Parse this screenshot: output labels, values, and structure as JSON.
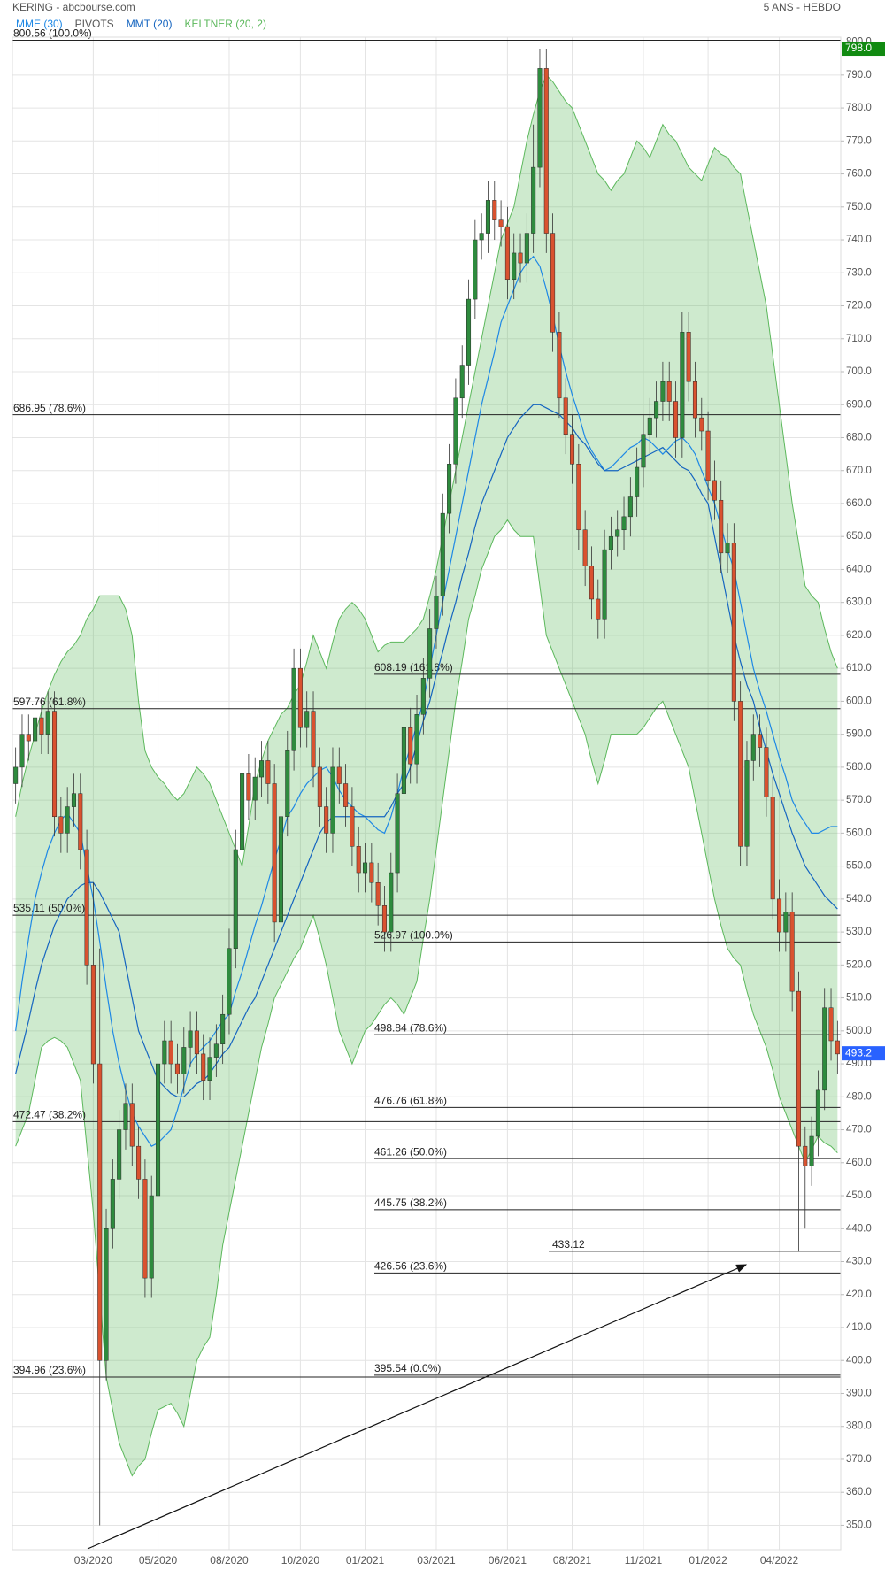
{
  "chart_data": {
    "type": "candlestick",
    "title": "KERING - abcbourse.com",
    "subtitle": "5 ANS - HEBDO",
    "categories": [
      null,
      null,
      null,
      null,
      null,
      null,
      null,
      null,
      null,
      null,
      null,
      null,
      "03/2020",
      null,
      null,
      null,
      null,
      null,
      null,
      null,
      null,
      null,
      "05/2020",
      null,
      null,
      null,
      null,
      null,
      null,
      null,
      null,
      null,
      null,
      "08/2020",
      null,
      null,
      null,
      null,
      null,
      null,
      null,
      null,
      null,
      null,
      "10/2020",
      null,
      null,
      null,
      null,
      null,
      null,
      null,
      null,
      null,
      "01/2021",
      null,
      null,
      null,
      null,
      null,
      null,
      null,
      null,
      null,
      null,
      "03/2021",
      null,
      null,
      null,
      null,
      null,
      null,
      null,
      null,
      null,
      null,
      "06/2021",
      null,
      null,
      null,
      null,
      null,
      null,
      null,
      null,
      null,
      "08/2021",
      null,
      null,
      null,
      null,
      null,
      null,
      null,
      null,
      null,
      null,
      "11/2021",
      null,
      null,
      null,
      null,
      null,
      null,
      null,
      null,
      null,
      "01/2022",
      null,
      null,
      null,
      null,
      null,
      null,
      null,
      null,
      null,
      null,
      "04/2022",
      null,
      null,
      null,
      null,
      null,
      null,
      null,
      null,
      null
    ],
    "open": [
      575,
      580,
      590,
      588,
      595,
      590,
      597,
      565,
      560,
      568,
      572,
      555,
      520,
      490,
      400,
      440,
      455,
      470,
      478,
      465,
      455,
      425,
      450,
      490,
      497,
      490,
      487,
      495,
      500,
      493,
      485,
      492,
      496,
      505,
      525,
      555,
      578,
      570,
      577,
      582,
      575,
      533,
      565,
      585,
      610,
      592,
      597,
      580,
      568,
      560,
      580,
      575,
      568,
      556,
      548,
      551,
      545,
      538,
      530,
      548,
      572,
      592,
      581,
      596,
      607,
      622,
      632,
      657,
      672,
      692,
      702,
      722,
      740,
      742,
      752,
      746,
      744,
      728,
      736,
      733,
      742,
      762,
      792,
      742,
      712,
      692,
      681,
      672,
      652,
      641,
      631,
      625,
      646,
      650,
      652,
      656,
      662,
      671,
      681,
      686,
      691,
      697,
      691,
      680,
      712,
      697,
      686,
      682,
      667,
      661,
      645,
      648,
      600,
      556,
      582,
      590,
      586,
      571,
      540,
      530,
      536,
      512,
      465,
      459,
      468,
      482,
      507,
      497
    ],
    "high": [
      586,
      596,
      596,
      601,
      601,
      603,
      603,
      571,
      574,
      578,
      578,
      561,
      545,
      525,
      446,
      461,
      476,
      484,
      484,
      471,
      461,
      456,
      496,
      503,
      503,
      496,
      501,
      506,
      506,
      499,
      498,
      502,
      511,
      531,
      561,
      584,
      584,
      583,
      588,
      588,
      581,
      571,
      591,
      616,
      616,
      603,
      603,
      586,
      574,
      586,
      586,
      581,
      574,
      562,
      557,
      557,
      551,
      544,
      554,
      578,
      598,
      598,
      602,
      613,
      628,
      638,
      663,
      678,
      698,
      708,
      728,
      746,
      748,
      758,
      758,
      752,
      750,
      742,
      742,
      748,
      775,
      798,
      798,
      748,
      718,
      698,
      687,
      678,
      658,
      647,
      637,
      652,
      656,
      658,
      662,
      668,
      677,
      687,
      692,
      697,
      703,
      703,
      697,
      718,
      718,
      703,
      692,
      688,
      673,
      667,
      654,
      654,
      606,
      588,
      596,
      596,
      592,
      577,
      546,
      542,
      542,
      518,
      471,
      474,
      488,
      513,
      513,
      503
    ],
    "low": [
      569,
      574,
      582,
      582,
      584,
      584,
      559,
      554,
      554,
      562,
      549,
      514,
      484,
      350,
      394,
      434,
      449,
      464,
      459,
      449,
      419,
      419,
      444,
      484,
      484,
      481,
      481,
      489,
      487,
      479,
      479,
      486,
      490,
      499,
      519,
      549,
      564,
      564,
      571,
      569,
      527,
      527,
      559,
      579,
      586,
      586,
      574,
      562,
      554,
      554,
      569,
      562,
      550,
      542,
      542,
      539,
      532,
      524,
      524,
      542,
      566,
      575,
      575,
      590,
      601,
      616,
      626,
      651,
      666,
      686,
      696,
      716,
      734,
      736,
      740,
      738,
      722,
      722,
      727,
      727,
      736,
      756,
      736,
      706,
      686,
      675,
      666,
      646,
      635,
      625,
      619,
      619,
      640,
      644,
      646,
      650,
      656,
      665,
      675,
      680,
      685,
      685,
      674,
      674,
      691,
      680,
      676,
      661,
      655,
      639,
      639,
      594,
      550,
      550,
      576,
      580,
      565,
      534,
      524,
      524,
      506,
      433,
      440,
      453,
      462,
      476,
      491,
      487
    ],
    "close": [
      580,
      590,
      588,
      595,
      590,
      597,
      565,
      560,
      568,
      572,
      555,
      520,
      490,
      400,
      440,
      455,
      470,
      478,
      465,
      455,
      425,
      450,
      490,
      497,
      490,
      487,
      495,
      500,
      493,
      485,
      492,
      496,
      505,
      525,
      555,
      578,
      570,
      577,
      582,
      575,
      533,
      565,
      585,
      610,
      592,
      597,
      580,
      568,
      560,
      580,
      575,
      568,
      556,
      548,
      551,
      545,
      538,
      530,
      548,
      572,
      592,
      581,
      596,
      607,
      622,
      632,
      657,
      672,
      692,
      702,
      722,
      740,
      742,
      752,
      746,
      744,
      728,
      736,
      733,
      742,
      762,
      792,
      742,
      712,
      692,
      681,
      672,
      652,
      641,
      631,
      625,
      646,
      650,
      652,
      656,
      662,
      671,
      681,
      686,
      691,
      697,
      691,
      680,
      712,
      697,
      686,
      682,
      667,
      661,
      645,
      648,
      600,
      556,
      582,
      590,
      586,
      571,
      540,
      530,
      536,
      512,
      465,
      459,
      468,
      482,
      507,
      497,
      493
    ],
    "up_color": "#2e8b3e",
    "down_color": "#d9522f",
    "band": {
      "name": "KELTNER (20, 2)",
      "color": "#5cb85c",
      "upper": [
        565,
        575,
        583,
        590,
        597,
        603,
        608,
        612,
        615,
        617,
        620,
        625,
        628,
        632,
        632,
        632,
        632,
        628,
        620,
        600,
        585,
        580,
        577,
        575,
        572,
        570,
        572,
        576,
        580,
        578,
        575,
        570,
        565,
        560,
        555,
        550,
        562,
        575,
        582,
        588,
        592,
        596,
        598,
        602,
        605,
        612,
        620,
        615,
        610,
        618,
        625,
        628,
        630,
        628,
        625,
        620,
        615,
        617,
        618,
        618,
        618,
        620,
        622,
        625,
        632,
        640,
        650,
        660,
        670,
        680,
        690,
        700,
        710,
        720,
        730,
        740,
        745,
        750,
        760,
        770,
        778,
        785,
        790,
        788,
        785,
        782,
        780,
        775,
        770,
        765,
        760,
        758,
        755,
        758,
        760,
        765,
        770,
        768,
        765,
        770,
        775,
        772,
        770,
        766,
        762,
        760,
        758,
        763,
        768,
        766,
        765,
        762,
        760,
        750,
        740,
        730,
        720,
        705,
        690,
        675,
        660,
        648,
        635,
        632,
        630,
        622,
        615,
        610
      ],
      "lower": [
        465,
        470,
        475,
        485,
        495,
        497,
        498,
        497,
        495,
        490,
        485,
        465,
        445,
        420,
        395,
        385,
        375,
        370,
        365,
        368,
        370,
        378,
        385,
        386,
        387,
        384,
        380,
        390,
        400,
        404,
        407,
        420,
        435,
        445,
        455,
        465,
        475,
        485,
        495,
        502,
        510,
        514,
        518,
        522,
        525,
        530,
        535,
        528,
        520,
        510,
        500,
        495,
        490,
        495,
        500,
        502,
        505,
        508,
        510,
        508,
        505,
        510,
        515,
        528,
        540,
        555,
        570,
        585,
        600,
        612,
        625,
        632,
        640,
        645,
        650,
        652,
        655,
        652,
        650,
        650,
        650,
        635,
        620,
        615,
        610,
        605,
        600,
        595,
        590,
        582,
        575,
        582,
        590,
        590,
        590,
        590,
        590,
        592,
        595,
        598,
        600,
        595,
        590,
        585,
        580,
        570,
        560,
        550,
        540,
        532,
        525,
        522,
        520,
        512,
        505,
        500,
        495,
        488,
        480,
        475,
        470,
        465,
        460,
        464,
        468,
        466,
        465,
        463
      ]
    },
    "series": [
      {
        "name": "MME (30)",
        "color": "#1e88e5",
        "values": [
          500,
          515,
          528,
          540,
          548,
          555,
          560,
          564,
          566,
          563,
          560,
          550,
          540,
          527,
          513,
          500,
          490,
          482,
          475,
          471,
          468,
          465,
          466,
          468,
          470,
          476,
          483,
          490,
          493,
          495,
          497,
          500,
          503,
          505,
          512,
          518,
          525,
          532,
          538,
          545,
          552,
          558,
          565,
          568,
          572,
          575,
          577,
          579,
          580,
          577,
          573,
          570,
          568,
          566,
          565,
          563,
          561,
          560,
          565,
          572,
          580,
          586,
          593,
          600,
          610,
          620,
          630,
          640,
          650,
          660,
          670,
          680,
          690,
          698,
          706,
          715,
          720,
          725,
          730,
          733,
          735,
          732,
          725,
          717,
          708,
          700,
          693,
          687,
          680,
          676,
          673,
          670,
          671,
          673,
          675,
          677,
          678,
          680,
          679,
          677,
          675,
          677,
          679,
          680,
          678,
          675,
          670,
          665,
          660,
          653,
          646,
          640,
          630,
          620,
          610,
          603,
          597,
          590,
          583,
          577,
          570,
          566,
          563,
          560,
          560,
          561,
          562,
          562
        ]
      },
      {
        "name": "MMT (20)",
        "color": "#1565c0",
        "values": [
          487,
          495,
          503,
          512,
          520,
          526,
          532,
          536,
          540,
          542,
          544,
          545,
          545,
          542,
          538,
          534,
          530,
          520,
          510,
          500,
          495,
          490,
          485,
          483,
          481,
          480,
          480,
          482,
          484,
          485,
          487,
          490,
          493,
          495,
          499,
          503,
          507,
          510,
          515,
          520,
          525,
          530,
          535,
          540,
          545,
          550,
          555,
          560,
          563,
          565,
          565,
          565,
          565,
          565,
          565,
          565,
          565,
          565,
          568,
          572,
          575,
          580,
          587,
          594,
          600,
          608,
          615,
          623,
          630,
          638,
          645,
          653,
          660,
          665,
          670,
          675,
          680,
          683,
          686,
          688,
          690,
          690,
          689,
          688,
          687,
          685,
          683,
          680,
          678,
          675,
          672,
          670,
          670,
          670,
          671,
          672,
          673,
          674,
          675,
          676,
          677,
          675,
          673,
          671,
          670,
          667,
          663,
          660,
          650,
          640,
          630,
          620,
          612,
          605,
          600,
          592,
          585,
          578,
          572,
          566,
          560,
          555,
          550,
          547,
          544,
          541,
          539,
          537
        ]
      }
    ],
    "pivots": {
      "name": "PIVOTS",
      "color": "#222222",
      "left_levels": [
        {
          "value": 800.56,
          "label": "800.56 (100.0%)"
        },
        {
          "value": 686.95,
          "label": "686.95 (78.6%)"
        },
        {
          "value": 597.76,
          "label": "597.76 (61.8%)"
        },
        {
          "value": 535.11,
          "label": "535.11 (50.0%)"
        },
        {
          "value": 472.47,
          "label": "472.47 (38.2%)"
        },
        {
          "value": 394.96,
          "label": "394.96 (23.6%)"
        }
      ],
      "right_levels": [
        {
          "value": 608.19,
          "label": "608.19 (161.8%)"
        },
        {
          "value": 526.97,
          "label": "526.97 (100.0%)"
        },
        {
          "value": 498.84,
          "label": "498.84 (78.6%)"
        },
        {
          "value": 476.76,
          "label": "476.76 (61.8%)"
        },
        {
          "value": 461.26,
          "label": "461.26 (50.0%)"
        },
        {
          "value": 445.75,
          "label": "445.75 (38.2%)"
        },
        {
          "value": 426.56,
          "label": "426.56 (23.6%)"
        },
        {
          "value": 395.54,
          "label": "395.54 (0.0%)"
        }
      ],
      "low_level": {
        "value": 433.12,
        "label": "433.12"
      }
    },
    "price_tags": [
      {
        "value": 798,
        "label": "798.0",
        "color": "#118a11"
      },
      {
        "value": 493.2,
        "label": "493.2",
        "color": "#2962ff"
      }
    ],
    "ylim": [
      342.6,
      801.5
    ],
    "yticks": [
      {
        "value": 350,
        "label": "350.0"
      },
      {
        "value": 360,
        "label": "360.0"
      },
      {
        "value": 370,
        "label": "370.0"
      },
      {
        "value": 380,
        "label": "380.0"
      },
      {
        "value": 390,
        "label": "390.0"
      },
      {
        "value": 400,
        "label": "400.0"
      },
      {
        "value": 410,
        "label": "410.0"
      },
      {
        "value": 420,
        "label": "420.0"
      },
      {
        "value": 430,
        "label": "430.0"
      },
      {
        "value": 440,
        "label": "440.0"
      },
      {
        "value": 450,
        "label": "450.0"
      },
      {
        "value": 460,
        "label": "460.0"
      },
      {
        "value": 470,
        "label": "470.0"
      },
      {
        "value": 480,
        "label": "480.0"
      },
      {
        "value": 490,
        "label": "490.0"
      },
      {
        "value": 500,
        "label": "500.0"
      },
      {
        "value": 510,
        "label": "510.0"
      },
      {
        "value": 520,
        "label": "520.0"
      },
      {
        "value": 530,
        "label": "530.0"
      },
      {
        "value": 540,
        "label": "540.0"
      },
      {
        "value": 550,
        "label": "550.0"
      },
      {
        "value": 560,
        "label": "560.0"
      },
      {
        "value": 570,
        "label": "570.0"
      },
      {
        "value": 580,
        "label": "580.0"
      },
      {
        "value": 590,
        "label": "590.0"
      },
      {
        "value": 600,
        "label": "600.0"
      },
      {
        "value": 610,
        "label": "610.0"
      },
      {
        "value": 620,
        "label": "620.0"
      },
      {
        "value": 630,
        "label": "630.0"
      },
      {
        "value": 640,
        "label": "640.0"
      },
      {
        "value": 650,
        "label": "650.0"
      },
      {
        "value": 660,
        "label": "660.0"
      },
      {
        "value": 670,
        "label": "670.0"
      },
      {
        "value": 680,
        "label": "680.0"
      },
      {
        "value": 690,
        "label": "690.0"
      },
      {
        "value": 700,
        "label": "700.0"
      },
      {
        "value": 710,
        "label": "710.0"
      },
      {
        "value": 720,
        "label": "720.0"
      },
      {
        "value": 730,
        "label": "730.0"
      },
      {
        "value": 740,
        "label": "740.0"
      },
      {
        "value": 750,
        "label": "750.0"
      },
      {
        "value": 760,
        "label": "760.0"
      },
      {
        "value": 770,
        "label": "770.0"
      },
      {
        "value": 780,
        "label": "780.0"
      },
      {
        "value": 790,
        "label": "790.0"
      },
      {
        "value": 800,
        "label": "800.0"
      }
    ],
    "grid": true
  }
}
